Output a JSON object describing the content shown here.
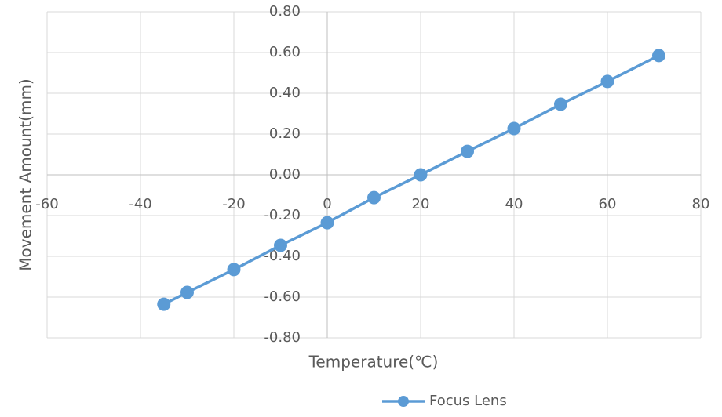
{
  "chart_data": {
    "type": "line",
    "x_label": "Temperature(℃)",
    "y_label": "Movement Amount(mm)",
    "x": [
      -35,
      -30,
      -20,
      -10,
      0,
      10,
      20,
      30,
      40,
      50,
      60,
      71
    ],
    "series": [
      {
        "name": "Focus Lens",
        "color": "#5b9bd5",
        "values": [
          -0.635,
          -0.577,
          -0.465,
          -0.346,
          -0.235,
          -0.112,
          0.0,
          0.115,
          0.227,
          0.346,
          0.458,
          0.585
        ]
      }
    ],
    "xlim": [
      -60,
      80
    ],
    "xticks": [
      -60,
      -40,
      -20,
      0,
      20,
      40,
      60,
      80
    ],
    "ylim": [
      -0.8,
      0.8
    ],
    "yticks": [
      {
        "value": -0.8,
        "label": "-0.80"
      },
      {
        "value": -0.6,
        "label": "-0.60"
      },
      {
        "value": -0.4,
        "label": "-0.40"
      },
      {
        "value": -0.2,
        "label": "-0.20"
      },
      {
        "value": 0,
        "label": "0.00"
      },
      {
        "value": 0.2,
        "label": "0.20"
      },
      {
        "value": 0.4,
        "label": "0.40"
      },
      {
        "value": 0.6,
        "label": "0.60"
      },
      {
        "value": 0.8,
        "label": "0.80"
      }
    ],
    "grid": true,
    "legend": "bottom"
  }
}
